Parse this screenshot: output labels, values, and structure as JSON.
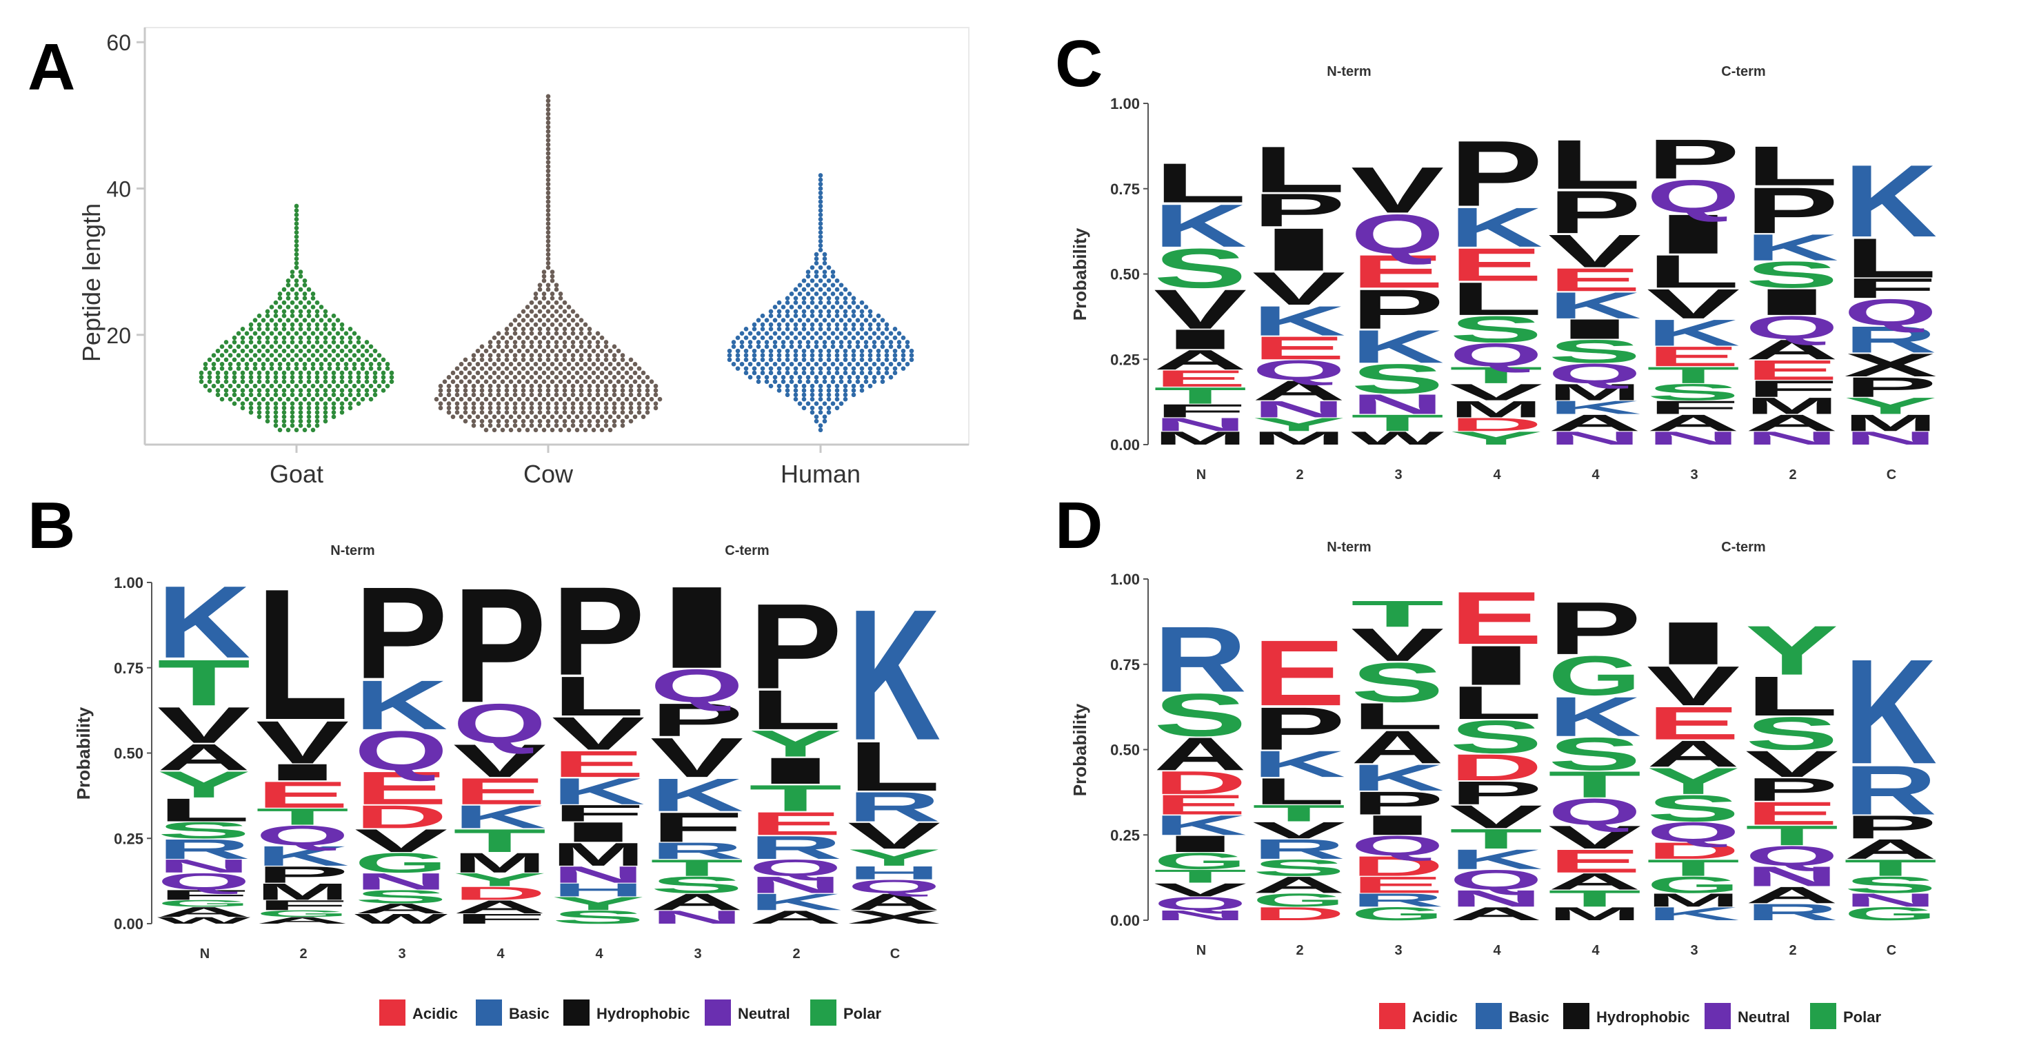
{
  "colors": {
    "Acidic": "#e8313d",
    "Basic": "#2d64a8",
    "Hydrophobic": "#111111",
    "Neutral": "#6a2fb0",
    "Polar": "#22a04a",
    "goat_dots": "#2e8b3a",
    "cow_dots": "#6b5e57",
    "human_dots": "#2f6aa8"
  },
  "aa_class": {
    "A": "Hydrophobic",
    "V": "Hydrophobic",
    "L": "Hydrophobic",
    "I": "Hydrophobic",
    "P": "Hydrophobic",
    "F": "Hydrophobic",
    "W": "Hydrophobic",
    "M": "Hydrophobic",
    "K": "Basic",
    "R": "Basic",
    "H": "Basic",
    "D": "Acidic",
    "E": "Acidic",
    "Q": "Neutral",
    "N": "Neutral",
    "S": "Polar",
    "T": "Polar",
    "G": "Polar",
    "Y": "Polar",
    "C": "Polar"
  },
  "chart_data": [
    {
      "panel": "A",
      "type": "scatter",
      "subtype": "beeswarm",
      "ylabel": "Peptide length",
      "xlabel": "",
      "yticks": [
        20,
        40,
        60
      ],
      "ylim": [
        5,
        62
      ],
      "categories": [
        "Goat",
        "Cow",
        "Human"
      ],
      "series": [
        {
          "name": "Goat",
          "color_key": "goat_dots",
          "min": 7,
          "max": 38,
          "mode": 14,
          "spread": 1.0
        },
        {
          "name": "Cow",
          "color_key": "cow_dots",
          "min": 7,
          "max": 53,
          "mode": 11,
          "spread": 1.15
        },
        {
          "name": "Human",
          "color_key": "human_dots",
          "min": 7,
          "max": 42,
          "mode": 17,
          "spread": 0.95
        }
      ]
    },
    {
      "panel": "B",
      "type": "sequence-logo",
      "ylabel": "Probability",
      "yticks": [
        "0.00",
        "0.25",
        "0.50",
        "0.75",
        "1.00"
      ],
      "group_titles": [
        "N-term",
        "C-term"
      ],
      "positions": [
        "N",
        "2",
        "3",
        "4",
        "4",
        "3",
        "2",
        "C"
      ],
      "columns": [
        [
          [
            "W",
            0.02
          ],
          [
            "A",
            0.03
          ],
          [
            "G",
            0.02
          ],
          [
            "F",
            0.03
          ],
          [
            "Q",
            0.05
          ],
          [
            "N",
            0.04
          ],
          [
            "R",
            0.06
          ],
          [
            "S",
            0.05
          ],
          [
            "L",
            0.07
          ],
          [
            "Y",
            0.08
          ],
          [
            "A",
            0.08
          ],
          [
            "V",
            0.11
          ],
          [
            "T",
            0.14
          ],
          [
            "K",
            0.22
          ]
        ],
        [
          [
            "A",
            0.02
          ],
          [
            "G",
            0.02
          ],
          [
            "F",
            0.03
          ],
          [
            "M",
            0.05
          ],
          [
            "P",
            0.05
          ],
          [
            "K",
            0.06
          ],
          [
            "Q",
            0.06
          ],
          [
            "T",
            0.05
          ],
          [
            "E",
            0.08
          ],
          [
            "I",
            0.05
          ],
          [
            "V",
            0.13
          ],
          [
            "L",
            0.4
          ]
        ],
        [
          [
            "W",
            0.03
          ],
          [
            "A",
            0.03
          ],
          [
            "S",
            0.04
          ],
          [
            "N",
            0.05
          ],
          [
            "G",
            0.06
          ],
          [
            "V",
            0.07
          ],
          [
            "D",
            0.07
          ],
          [
            "E",
            0.1
          ],
          [
            "Q",
            0.12
          ],
          [
            "K",
            0.15
          ],
          [
            "P",
            0.28
          ]
        ],
        [
          [
            "F",
            0.03
          ],
          [
            "A",
            0.04
          ],
          [
            "D",
            0.04
          ],
          [
            "Y",
            0.04
          ],
          [
            "M",
            0.06
          ],
          [
            "T",
            0.07
          ],
          [
            "K",
            0.07
          ],
          [
            "E",
            0.08
          ],
          [
            "V",
            0.1
          ],
          [
            "Q",
            0.12
          ],
          [
            "P",
            0.35
          ]
        ],
        [
          [
            "S",
            0.04
          ],
          [
            "Y",
            0.04
          ],
          [
            "H",
            0.04
          ],
          [
            "N",
            0.05
          ],
          [
            "M",
            0.07
          ],
          [
            "I",
            0.06
          ],
          [
            "F",
            0.05
          ],
          [
            "K",
            0.08
          ],
          [
            "E",
            0.08
          ],
          [
            "V",
            0.1
          ],
          [
            "L",
            0.12
          ],
          [
            "P",
            0.27
          ]
        ],
        [
          [
            "N",
            0.04
          ],
          [
            "A",
            0.05
          ],
          [
            "S",
            0.05
          ],
          [
            "T",
            0.05
          ],
          [
            "R",
            0.05
          ],
          [
            "F",
            0.09
          ],
          [
            "K",
            0.1
          ],
          [
            "V",
            0.12
          ],
          [
            "P",
            0.1
          ],
          [
            "Q",
            0.1
          ],
          [
            "I",
            0.25
          ]
        ],
        [
          [
            "A",
            0.04
          ],
          [
            "K",
            0.05
          ],
          [
            "N",
            0.05
          ],
          [
            "Q",
            0.05
          ],
          [
            "R",
            0.07
          ],
          [
            "E",
            0.07
          ],
          [
            "T",
            0.08
          ],
          [
            "I",
            0.08
          ],
          [
            "Y",
            0.08
          ],
          [
            "L",
            0.12
          ],
          [
            "P",
            0.26
          ]
        ],
        [
          [
            "X",
            0.04
          ],
          [
            "A",
            0.05
          ],
          [
            "Q",
            0.04
          ],
          [
            "H",
            0.04
          ],
          [
            "Y",
            0.05
          ],
          [
            "V",
            0.08
          ],
          [
            "R",
            0.09
          ],
          [
            "L",
            0.15
          ],
          [
            "K",
            0.4
          ]
        ]
      ]
    },
    {
      "panel": "C",
      "type": "sequence-logo",
      "ylabel": "Probability",
      "yticks": [
        "0.00",
        "0.25",
        "0.50",
        "0.75",
        "1.00"
      ],
      "group_titles": [
        "N-term",
        "C-term"
      ],
      "positions": [
        "N",
        "2",
        "3",
        "4",
        "4",
        "3",
        "2",
        "C"
      ],
      "columns": [
        [
          [
            "M",
            0.04
          ],
          [
            "N",
            0.04
          ],
          [
            "F",
            0.04
          ],
          [
            "T",
            0.05
          ],
          [
            "E",
            0.05
          ],
          [
            "A",
            0.06
          ],
          [
            "I",
            0.06
          ],
          [
            "V",
            0.12
          ],
          [
            "S",
            0.12
          ],
          [
            "K",
            0.13
          ],
          [
            "L",
            0.12
          ]
        ],
        [
          [
            "M",
            0.04
          ],
          [
            "Y",
            0.04
          ],
          [
            "N",
            0.05
          ],
          [
            "A",
            0.06
          ],
          [
            "Q",
            0.06
          ],
          [
            "E",
            0.07
          ],
          [
            "K",
            0.09
          ],
          [
            "V",
            0.1
          ],
          [
            "I",
            0.13
          ],
          [
            "P",
            0.1
          ],
          [
            "L",
            0.14
          ]
        ],
        [
          [
            "W",
            0.04
          ],
          [
            "T",
            0.05
          ],
          [
            "N",
            0.06
          ],
          [
            "S",
            0.09
          ],
          [
            "K",
            0.1
          ],
          [
            "P",
            0.12
          ],
          [
            "E",
            0.1
          ],
          [
            "Q",
            0.12
          ],
          [
            "V",
            0.14
          ]
        ],
        [
          [
            "Y",
            0.04
          ],
          [
            "D",
            0.04
          ],
          [
            "M",
            0.05
          ],
          [
            "V",
            0.05
          ],
          [
            "T",
            0.05
          ],
          [
            "Q",
            0.07
          ],
          [
            "S",
            0.08
          ],
          [
            "L",
            0.1
          ],
          [
            "E",
            0.1
          ],
          [
            "K",
            0.12
          ],
          [
            "P",
            0.2
          ]
        ],
        [
          [
            "N",
            0.04
          ],
          [
            "A",
            0.05
          ],
          [
            "K",
            0.04
          ],
          [
            "M",
            0.05
          ],
          [
            "Q",
            0.06
          ],
          [
            "S",
            0.07
          ],
          [
            "I",
            0.06
          ],
          [
            "K",
            0.08
          ],
          [
            "E",
            0.07
          ],
          [
            "V",
            0.1
          ],
          [
            "P",
            0.13
          ],
          [
            "L",
            0.15
          ]
        ],
        [
          [
            "N",
            0.04
          ],
          [
            "A",
            0.05
          ],
          [
            "F",
            0.04
          ],
          [
            "S",
            0.05
          ],
          [
            "T",
            0.05
          ],
          [
            "E",
            0.06
          ],
          [
            "K",
            0.08
          ],
          [
            "V",
            0.09
          ],
          [
            "L",
            0.1
          ],
          [
            "I",
            0.12
          ],
          [
            "Q",
            0.1
          ],
          [
            "P",
            0.12
          ]
        ],
        [
          [
            "N",
            0.04
          ],
          [
            "A",
            0.05
          ],
          [
            "M",
            0.05
          ],
          [
            "F",
            0.05
          ],
          [
            "E",
            0.06
          ],
          [
            "A",
            0.06
          ],
          [
            "Q",
            0.07
          ],
          [
            "I",
            0.08
          ],
          [
            "S",
            0.08
          ],
          [
            "K",
            0.08
          ],
          [
            "P",
            0.14
          ],
          [
            "L",
            0.12
          ]
        ],
        [
          [
            "N",
            0.04
          ],
          [
            "M",
            0.05
          ],
          [
            "Y",
            0.05
          ],
          [
            "P",
            0.06
          ],
          [
            "X",
            0.07
          ],
          [
            "R",
            0.08
          ],
          [
            "Q",
            0.08
          ],
          [
            "F",
            0.06
          ],
          [
            "L",
            0.12
          ],
          [
            "K",
            0.22
          ]
        ]
      ]
    },
    {
      "panel": "D",
      "type": "sequence-logo",
      "ylabel": "Probability",
      "yticks": [
        "0.00",
        "0.25",
        "0.50",
        "0.75",
        "1.00"
      ],
      "group_titles": [
        "N-term",
        "C-term"
      ],
      "positions": [
        "N",
        "2",
        "3",
        "4",
        "4",
        "3",
        "2",
        "C"
      ],
      "columns": [
        [
          [
            "N",
            0.03
          ],
          [
            "Q",
            0.04
          ],
          [
            "V",
            0.04
          ],
          [
            "T",
            0.04
          ],
          [
            "G",
            0.05
          ],
          [
            "I",
            0.05
          ],
          [
            "K",
            0.06
          ],
          [
            "E",
            0.06
          ],
          [
            "D",
            0.07
          ],
          [
            "A",
            0.1
          ],
          [
            "S",
            0.13
          ],
          [
            "R",
            0.2
          ]
        ],
        [
          [
            "D",
            0.04
          ],
          [
            "G",
            0.04
          ],
          [
            "A",
            0.05
          ],
          [
            "S",
            0.05
          ],
          [
            "R",
            0.06
          ],
          [
            "V",
            0.05
          ],
          [
            "T",
            0.05
          ],
          [
            "L",
            0.08
          ],
          [
            "K",
            0.08
          ],
          [
            "P",
            0.13
          ],
          [
            "E",
            0.2
          ]
        ],
        [
          [
            "G",
            0.04
          ],
          [
            "R",
            0.04
          ],
          [
            "E",
            0.05
          ],
          [
            "D",
            0.06
          ],
          [
            "Q",
            0.06
          ],
          [
            "I",
            0.06
          ],
          [
            "P",
            0.07
          ],
          [
            "K",
            0.08
          ],
          [
            "A",
            0.1
          ],
          [
            "L",
            0.08
          ],
          [
            "S",
            0.12
          ],
          [
            "V",
            0.1
          ],
          [
            "T",
            0.08
          ]
        ],
        [
          [
            "A",
            0.04
          ],
          [
            "N",
            0.05
          ],
          [
            "Q",
            0.06
          ],
          [
            "K",
            0.06
          ],
          [
            "T",
            0.06
          ],
          [
            "V",
            0.07
          ],
          [
            "P",
            0.07
          ],
          [
            "D",
            0.08
          ],
          [
            "S",
            0.1
          ],
          [
            "L",
            0.1
          ],
          [
            "I",
            0.12
          ],
          [
            "E",
            0.16
          ]
        ],
        [
          [
            "M",
            0.04
          ],
          [
            "T",
            0.05
          ],
          [
            "A",
            0.05
          ],
          [
            "E",
            0.07
          ],
          [
            "V",
            0.07
          ],
          [
            "Q",
            0.08
          ],
          [
            "T",
            0.08
          ],
          [
            "S",
            0.1
          ],
          [
            "K",
            0.12
          ],
          [
            "G",
            0.12
          ],
          [
            "P",
            0.16
          ]
        ],
        [
          [
            "K",
            0.04
          ],
          [
            "M",
            0.04
          ],
          [
            "G",
            0.05
          ],
          [
            "T",
            0.05
          ],
          [
            "D",
            0.05
          ],
          [
            "Q",
            0.06
          ],
          [
            "S",
            0.08
          ],
          [
            "Y",
            0.08
          ],
          [
            "A",
            0.08
          ],
          [
            "E",
            0.1
          ],
          [
            "V",
            0.12
          ],
          [
            "I",
            0.13
          ]
        ],
        [
          [
            "R",
            0.05
          ],
          [
            "A",
            0.05
          ],
          [
            "N",
            0.06
          ],
          [
            "Q",
            0.06
          ],
          [
            "T",
            0.06
          ],
          [
            "E",
            0.07
          ],
          [
            "P",
            0.07
          ],
          [
            "V",
            0.08
          ],
          [
            "S",
            0.1
          ],
          [
            "L",
            0.12
          ],
          [
            "Y",
            0.15
          ]
        ],
        [
          [
            "G",
            0.04
          ],
          [
            "N",
            0.04
          ],
          [
            "S",
            0.05
          ],
          [
            "T",
            0.05
          ],
          [
            "A",
            0.06
          ],
          [
            "P",
            0.07
          ],
          [
            "R",
            0.15
          ],
          [
            "K",
            0.32
          ]
        ]
      ]
    }
  ],
  "legend": {
    "B": [
      "Acidic",
      "Basic",
      "Hydrophobic",
      "Neutral",
      "Polar"
    ],
    "D": [
      "Acidic",
      "Basic",
      "Hydrophobic",
      "Neutral",
      "Polar"
    ]
  }
}
